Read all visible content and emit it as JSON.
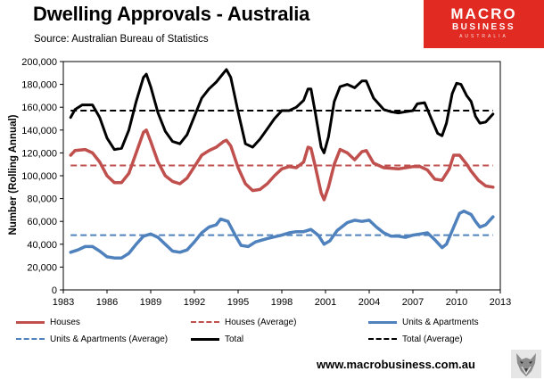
{
  "title": "Dwelling Approvals - Australia",
  "source": "Source: Australian Bureau of Statistics",
  "logo": {
    "line1": "MACRO",
    "line2": "BUSINESS",
    "line3": "AUSTRALIA"
  },
  "website": "www.macrobusiness.com.au",
  "icons": {
    "watermark": "wolf-head-icon"
  },
  "chart_data": {
    "type": "line",
    "ylabel": "Number (Rolling Annual)",
    "ylim": [
      0,
      200000
    ],
    "xlim": [
      1983,
      2013
    ],
    "yticks": [
      "0",
      "20,000",
      "40,000",
      "60,000",
      "80,000",
      "100,000",
      "120,000",
      "140,000",
      "160,000",
      "180,000",
      "200,000"
    ],
    "xticks": [
      "1983",
      "1986",
      "1989",
      "1992",
      "1995",
      "1998",
      "2001",
      "2004",
      "2007",
      "2010",
      "2013"
    ],
    "grid": false,
    "legend_position": "bottom",
    "series": [
      {
        "name": "Houses",
        "color": "#c0504d",
        "style": "solid",
        "points": [
          [
            1983.5,
            118000
          ],
          [
            1983.8,
            122000
          ],
          [
            1984.5,
            123000
          ],
          [
            1985.0,
            120000
          ],
          [
            1985.5,
            112000
          ],
          [
            1986.0,
            100000
          ],
          [
            1986.5,
            94000
          ],
          [
            1987.0,
            94000
          ],
          [
            1987.5,
            102000
          ],
          [
            1988.0,
            120000
          ],
          [
            1988.5,
            138000
          ],
          [
            1988.7,
            140000
          ],
          [
            1989.0,
            130000
          ],
          [
            1989.5,
            112000
          ],
          [
            1990.0,
            100000
          ],
          [
            1990.5,
            95000
          ],
          [
            1991.0,
            93000
          ],
          [
            1991.5,
            98000
          ],
          [
            1992.0,
            108000
          ],
          [
            1992.5,
            118000
          ],
          [
            1993.0,
            122000
          ],
          [
            1993.5,
            125000
          ],
          [
            1994.0,
            130000
          ],
          [
            1994.2,
            131000
          ],
          [
            1994.5,
            126000
          ],
          [
            1995.0,
            107000
          ],
          [
            1995.5,
            93000
          ],
          [
            1996.0,
            87000
          ],
          [
            1996.5,
            88000
          ],
          [
            1997.0,
            93000
          ],
          [
            1997.5,
            100000
          ],
          [
            1998.0,
            106000
          ],
          [
            1998.5,
            108000
          ],
          [
            1999.0,
            107000
          ],
          [
            1999.5,
            112000
          ],
          [
            1999.8,
            125000
          ],
          [
            2000.0,
            124000
          ],
          [
            2000.3,
            108000
          ],
          [
            2000.7,
            85000
          ],
          [
            2000.9,
            79000
          ],
          [
            2001.2,
            90000
          ],
          [
            2001.6,
            110000
          ],
          [
            2002.0,
            123000
          ],
          [
            2002.5,
            120000
          ],
          [
            2003.0,
            114000
          ],
          [
            2003.5,
            121000
          ],
          [
            2003.8,
            122000
          ],
          [
            2004.3,
            111000
          ],
          [
            2005.0,
            107000
          ],
          [
            2006.0,
            106000
          ],
          [
            2007.0,
            108000
          ],
          [
            2007.5,
            108000
          ],
          [
            2008.0,
            105000
          ],
          [
            2008.5,
            97000
          ],
          [
            2009.0,
            96000
          ],
          [
            2009.5,
            106000
          ],
          [
            2009.8,
            118000
          ],
          [
            2010.2,
            118000
          ],
          [
            2010.7,
            110000
          ],
          [
            2011.0,
            104000
          ],
          [
            2011.5,
            96000
          ],
          [
            2012.0,
            91000
          ],
          [
            2012.5,
            90000
          ]
        ]
      },
      {
        "name": "Houses (Average)",
        "color": "#c0504d",
        "style": "dashed",
        "points": [
          [
            1983.5,
            109000
          ],
          [
            2012.5,
            109000
          ]
        ]
      },
      {
        "name": "Units & Apartments",
        "color": "#4f81bd",
        "style": "solid",
        "points": [
          [
            1983.5,
            33000
          ],
          [
            1984.0,
            35000
          ],
          [
            1984.5,
            38000
          ],
          [
            1985.0,
            38000
          ],
          [
            1985.5,
            34000
          ],
          [
            1986.0,
            29000
          ],
          [
            1986.5,
            28000
          ],
          [
            1987.0,
            28000
          ],
          [
            1987.5,
            32000
          ],
          [
            1988.0,
            40000
          ],
          [
            1988.5,
            47000
          ],
          [
            1989.0,
            49000
          ],
          [
            1989.5,
            46000
          ],
          [
            1990.0,
            40000
          ],
          [
            1990.5,
            34000
          ],
          [
            1991.0,
            33000
          ],
          [
            1991.5,
            35000
          ],
          [
            1992.0,
            42000
          ],
          [
            1992.5,
            50000
          ],
          [
            1993.0,
            55000
          ],
          [
            1993.5,
            57000
          ],
          [
            1993.8,
            62000
          ],
          [
            1994.3,
            60000
          ],
          [
            1994.8,
            48000
          ],
          [
            1995.2,
            39000
          ],
          [
            1995.7,
            38000
          ],
          [
            1996.2,
            42000
          ],
          [
            1997.0,
            45000
          ],
          [
            1998.0,
            48000
          ],
          [
            1998.5,
            50000
          ],
          [
            1999.0,
            51000
          ],
          [
            1999.5,
            51000
          ],
          [
            2000.0,
            53000
          ],
          [
            2000.5,
            48000
          ],
          [
            2000.9,
            40000
          ],
          [
            2001.3,
            43000
          ],
          [
            2001.8,
            52000
          ],
          [
            2002.5,
            59000
          ],
          [
            2003.0,
            61000
          ],
          [
            2003.5,
            60000
          ],
          [
            2004.0,
            61000
          ],
          [
            2004.5,
            55000
          ],
          [
            2005.0,
            50000
          ],
          [
            2005.5,
            47000
          ],
          [
            2006.0,
            47000
          ],
          [
            2006.5,
            46000
          ],
          [
            2007.0,
            48000
          ],
          [
            2007.5,
            49000
          ],
          [
            2008.0,
            50000
          ],
          [
            2008.5,
            44000
          ],
          [
            2009.0,
            37000
          ],
          [
            2009.3,
            40000
          ],
          [
            2009.7,
            52000
          ],
          [
            2010.2,
            67000
          ],
          [
            2010.5,
            69000
          ],
          [
            2011.0,
            66000
          ],
          [
            2011.3,
            60000
          ],
          [
            2011.6,
            55000
          ],
          [
            2012.0,
            57000
          ],
          [
            2012.5,
            64000
          ]
        ]
      },
      {
        "name": "Units & Apartments (Average)",
        "color": "#4f81bd",
        "style": "dashed",
        "points": [
          [
            1983.5,
            48000
          ],
          [
            2012.5,
            48000
          ]
        ]
      },
      {
        "name": "Total",
        "color": "#000000",
        "style": "solid",
        "points": [
          [
            1983.5,
            151000
          ],
          [
            1983.8,
            158000
          ],
          [
            1984.3,
            162000
          ],
          [
            1985.0,
            162000
          ],
          [
            1985.5,
            151000
          ],
          [
            1986.0,
            133000
          ],
          [
            1986.5,
            123000
          ],
          [
            1987.0,
            124000
          ],
          [
            1987.5,
            140000
          ],
          [
            1988.0,
            165000
          ],
          [
            1988.5,
            186000
          ],
          [
            1988.7,
            189000
          ],
          [
            1989.0,
            178000
          ],
          [
            1989.5,
            155000
          ],
          [
            1990.0,
            139000
          ],
          [
            1990.5,
            130000
          ],
          [
            1991.0,
            128000
          ],
          [
            1991.5,
            136000
          ],
          [
            1992.0,
            152000
          ],
          [
            1992.5,
            168000
          ],
          [
            1993.0,
            176000
          ],
          [
            1993.5,
            182000
          ],
          [
            1994.0,
            190000
          ],
          [
            1994.2,
            193000
          ],
          [
            1994.5,
            186000
          ],
          [
            1995.0,
            156000
          ],
          [
            1995.5,
            128000
          ],
          [
            1996.0,
            125000
          ],
          [
            1996.5,
            132000
          ],
          [
            1997.0,
            141000
          ],
          [
            1997.5,
            150000
          ],
          [
            1998.0,
            157000
          ],
          [
            1998.5,
            157000
          ],
          [
            1999.0,
            160000
          ],
          [
            1999.5,
            166000
          ],
          [
            1999.8,
            176000
          ],
          [
            2000.0,
            176000
          ],
          [
            2000.3,
            155000
          ],
          [
            2000.7,
            125000
          ],
          [
            2000.9,
            120000
          ],
          [
            2001.2,
            134000
          ],
          [
            2001.6,
            165000
          ],
          [
            2002.0,
            178000
          ],
          [
            2002.5,
            180000
          ],
          [
            2003.0,
            177000
          ],
          [
            2003.5,
            183000
          ],
          [
            2003.8,
            183000
          ],
          [
            2004.3,
            168000
          ],
          [
            2005.0,
            158000
          ],
          [
            2005.5,
            156000
          ],
          [
            2006.0,
            155000
          ],
          [
            2006.5,
            156000
          ],
          [
            2007.0,
            157000
          ],
          [
            2007.3,
            163000
          ],
          [
            2007.8,
            164000
          ],
          [
            2008.3,
            149000
          ],
          [
            2008.7,
            137000
          ],
          [
            2009.0,
            135000
          ],
          [
            2009.3,
            146000
          ],
          [
            2009.7,
            172000
          ],
          [
            2010.0,
            181000
          ],
          [
            2010.3,
            180000
          ],
          [
            2010.7,
            170000
          ],
          [
            2011.0,
            165000
          ],
          [
            2011.3,
            152000
          ],
          [
            2011.6,
            146000
          ],
          [
            2012.0,
            147000
          ],
          [
            2012.5,
            154000
          ]
        ]
      },
      {
        "name": "Total (Average)",
        "color": "#000000",
        "style": "dashed",
        "points": [
          [
            1983.5,
            157000
          ],
          [
            2012.5,
            157000
          ]
        ]
      }
    ]
  }
}
